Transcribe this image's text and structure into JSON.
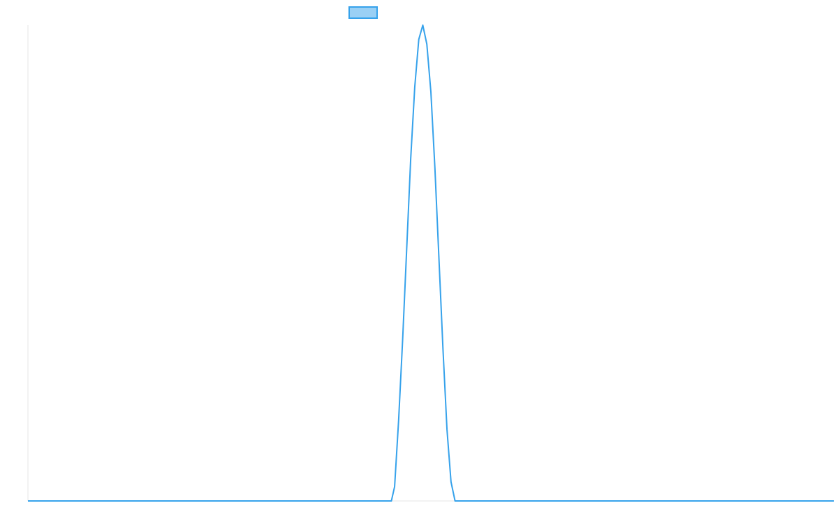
{
  "chart_data": {
    "type": "line",
    "title": "",
    "xlabel": "",
    "ylabel": "",
    "grid": false,
    "legend": {
      "position": "top-center"
    },
    "colors": {
      "series_line": "#36a2eb",
      "series_fill": "#9ad0f5",
      "axis": "#e5e5e5"
    },
    "xlim": [
      0,
      100
    ],
    "ylim": [
      0,
      1
    ],
    "series": [
      {
        "x": [
          0,
          5,
          10,
          15,
          20,
          25,
          30,
          35,
          40,
          45,
          45.1,
          45.5,
          46,
          46.5,
          47,
          47.5,
          48,
          48.5,
          49,
          49.5,
          50,
          50.5,
          51,
          51.5,
          52,
          52.5,
          53,
          55,
          60,
          65,
          70,
          75,
          80,
          85,
          90,
          95,
          100
        ],
        "values": [
          0,
          0,
          0,
          0,
          0,
          0,
          0,
          0,
          0,
          0,
          0.0,
          0.03,
          0.17,
          0.34,
          0.53,
          0.72,
          0.87,
          0.97,
          1.0,
          0.96,
          0.86,
          0.7,
          0.51,
          0.32,
          0.15,
          0.04,
          0.0,
          0,
          0,
          0,
          0,
          0,
          0,
          0,
          0,
          0,
          0
        ]
      }
    ]
  }
}
